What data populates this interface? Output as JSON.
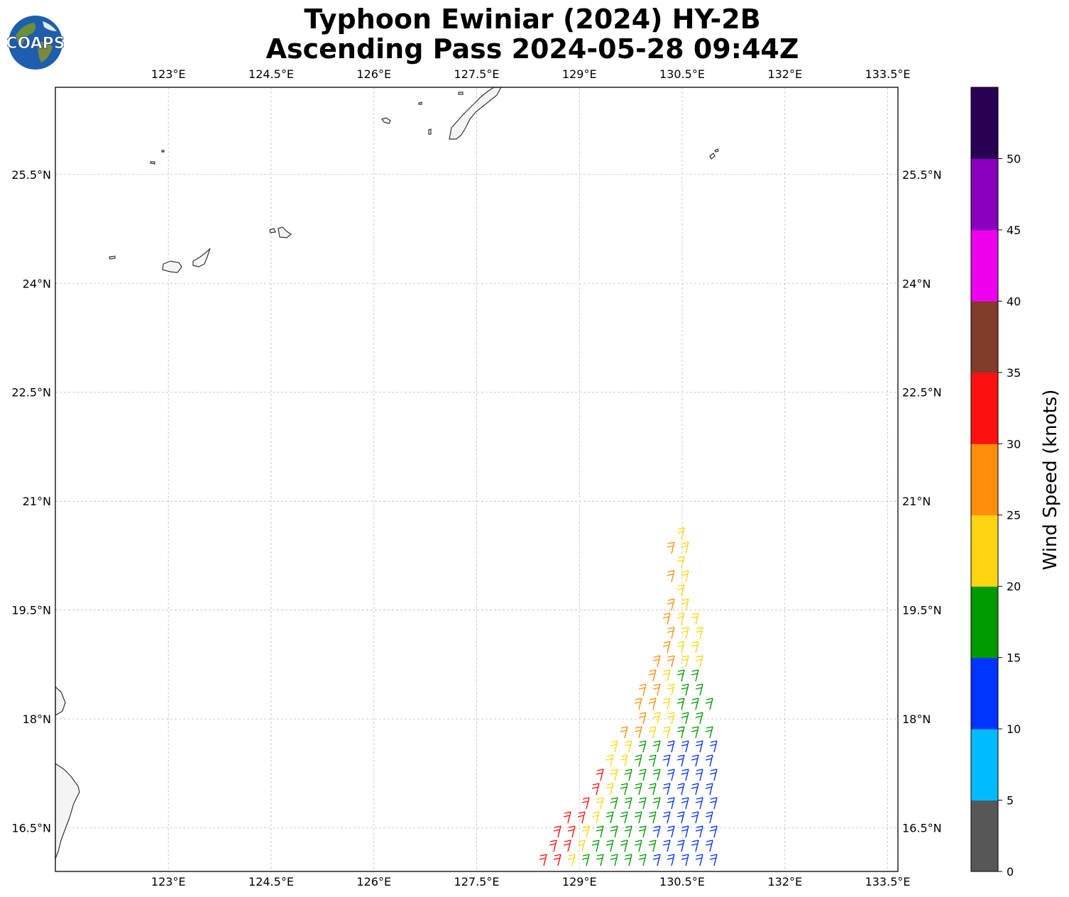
{
  "title": {
    "line1": "Typhoon Ewiniar (2024) HY-2B",
    "line2": "Ascending Pass 2024-05-28 09:44Z"
  },
  "logo": {
    "text": "COAPS",
    "icon": "globe-logo-icon"
  },
  "map": {
    "lon_range": [
      121.35,
      133.65
    ],
    "lat_range": [
      15.9,
      26.7
    ],
    "lon_ticks": [
      "123°E",
      "124.5°E",
      "126°E",
      "127.5°E",
      "129°E",
      "130.5°E",
      "132°E",
      "133.5°E"
    ],
    "lon_values": [
      123,
      124.5,
      126,
      127.5,
      129,
      130.5,
      132,
      133.5
    ],
    "lat_ticks": [
      "16.5°N",
      "18°N",
      "19.5°N",
      "21°N",
      "22.5°N",
      "24°N",
      "25.5°N"
    ],
    "lat_values": [
      16.5,
      18,
      19.5,
      21,
      22.5,
      24,
      25.5
    ],
    "gridlines": true,
    "coastline_color": "#333333"
  },
  "colorbar": {
    "label": "Wind Speed (knots)",
    "ticks": [
      "0",
      "5",
      "10",
      "15",
      "20",
      "25",
      "30",
      "35",
      "40",
      "45",
      "50"
    ],
    "colors": [
      "#575757",
      "#00bbff",
      "#0033ff",
      "#009900",
      "#ffd511",
      "#ff8c0b",
      "#ff1010",
      "#823c2b",
      "#ee00ee",
      "#8800bb",
      "#2a0055"
    ]
  },
  "swath": {
    "outline_approx": [
      [
        128.35,
        15.9
      ],
      [
        129.2,
        17.2
      ],
      [
        129.8,
        18.0
      ],
      [
        130.3,
        19.4
      ],
      [
        130.35,
        20.6
      ],
      [
        130.55,
        20.6
      ],
      [
        130.75,
        19.3
      ],
      [
        131.05,
        17.4
      ],
      [
        131.45,
        15.9
      ]
    ]
  }
}
